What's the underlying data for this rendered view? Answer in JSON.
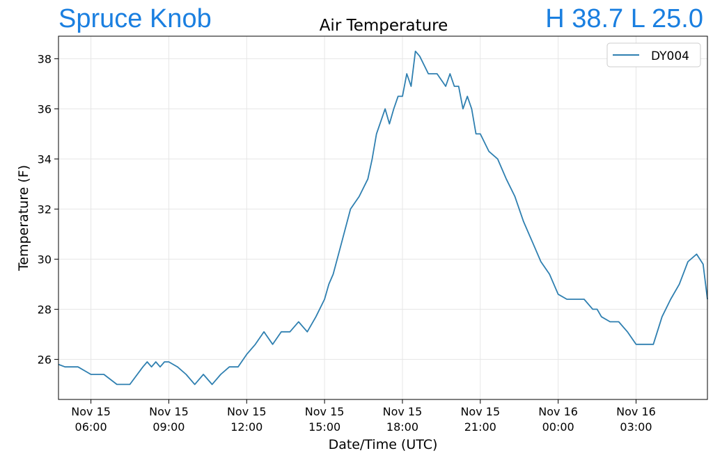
{
  "header": {
    "station": "Spruce Knob",
    "high_label": "H",
    "high_value": "38.7",
    "low_label": "L",
    "low_value": "25.0",
    "accent_color": "#1a7fe0"
  },
  "chart_data": {
    "type": "line",
    "title": "Air Temperature",
    "xlabel": "Date/Time (UTC)",
    "ylabel": "Temperature (F)",
    "x_range": [
      "2021-11-15T04:45",
      "2021-11-16T05:45"
    ],
    "ylim": [
      24.4,
      38.9
    ],
    "y_ticks": [
      26,
      28,
      30,
      32,
      34,
      36,
      38
    ],
    "x_ticks": [
      {
        "time": "2021-11-15T06:00",
        "line1": "Nov 15",
        "line2": "06:00"
      },
      {
        "time": "2021-11-15T09:00",
        "line1": "Nov 15",
        "line2": "09:00"
      },
      {
        "time": "2021-11-15T12:00",
        "line1": "Nov 15",
        "line2": "12:00"
      },
      {
        "time": "2021-11-15T15:00",
        "line1": "Nov 15",
        "line2": "15:00"
      },
      {
        "time": "2021-11-15T18:00",
        "line1": "Nov 15",
        "line2": "18:00"
      },
      {
        "time": "2021-11-15T21:00",
        "line1": "Nov 15",
        "line2": "21:00"
      },
      {
        "time": "2021-11-16T00:00",
        "line1": "Nov 16",
        "line2": "00:00"
      },
      {
        "time": "2021-11-16T03:00",
        "line1": "Nov 16",
        "line2": "03:00"
      }
    ],
    "grid": true,
    "legend_position": "top-right",
    "series": [
      {
        "name": "DY004",
        "color": "#2e7fb0",
        "x": [
          "2021-11-15T04:45",
          "2021-11-15T05:00",
          "2021-11-15T05:30",
          "2021-11-15T06:00",
          "2021-11-15T06:30",
          "2021-11-15T07:00",
          "2021-11-15T07:30",
          "2021-11-15T08:00",
          "2021-11-15T08:10",
          "2021-11-15T08:20",
          "2021-11-15T08:30",
          "2021-11-15T08:40",
          "2021-11-15T08:50",
          "2021-11-15T09:00",
          "2021-11-15T09:20",
          "2021-11-15T09:40",
          "2021-11-15T10:00",
          "2021-11-15T10:20",
          "2021-11-15T10:40",
          "2021-11-15T11:00",
          "2021-11-15T11:20",
          "2021-11-15T11:40",
          "2021-11-15T12:00",
          "2021-11-15T12:20",
          "2021-11-15T12:40",
          "2021-11-15T13:00",
          "2021-11-15T13:20",
          "2021-11-15T13:40",
          "2021-11-15T14:00",
          "2021-11-15T14:20",
          "2021-11-15T14:40",
          "2021-11-15T15:00",
          "2021-11-15T15:10",
          "2021-11-15T15:20",
          "2021-11-15T15:40",
          "2021-11-15T16:00",
          "2021-11-15T16:20",
          "2021-11-15T16:40",
          "2021-11-15T16:50",
          "2021-11-15T17:00",
          "2021-11-15T17:20",
          "2021-11-15T17:30",
          "2021-11-15T17:40",
          "2021-11-15T17:50",
          "2021-11-15T18:00",
          "2021-11-15T18:10",
          "2021-11-15T18:20",
          "2021-11-15T18:30",
          "2021-11-15T18:40",
          "2021-11-15T19:00",
          "2021-11-15T19:20",
          "2021-11-15T19:40",
          "2021-11-15T19:50",
          "2021-11-15T20:00",
          "2021-11-15T20:10",
          "2021-11-15T20:20",
          "2021-11-15T20:30",
          "2021-11-15T20:40",
          "2021-11-15T20:50",
          "2021-11-15T21:00",
          "2021-11-15T21:20",
          "2021-11-15T21:40",
          "2021-11-15T22:00",
          "2021-11-15T22:20",
          "2021-11-15T22:40",
          "2021-11-15T23:00",
          "2021-11-15T23:20",
          "2021-11-15T23:40",
          "2021-11-16T00:00",
          "2021-11-16T00:20",
          "2021-11-16T00:40",
          "2021-11-16T01:00",
          "2021-11-16T01:20",
          "2021-11-16T01:30",
          "2021-11-16T01:40",
          "2021-11-16T02:00",
          "2021-11-16T02:20",
          "2021-11-16T02:40",
          "2021-11-16T03:00",
          "2021-11-16T03:20",
          "2021-11-16T03:40",
          "2021-11-16T04:00",
          "2021-11-16T04:20",
          "2021-11-16T04:40",
          "2021-11-16T05:00",
          "2021-11-16T05:20",
          "2021-11-16T05:35",
          "2021-11-16T05:45"
        ],
        "y": [
          25.8,
          25.7,
          25.7,
          25.4,
          25.4,
          25.0,
          25.0,
          25.7,
          25.9,
          25.7,
          25.9,
          25.7,
          25.9,
          25.9,
          25.7,
          25.4,
          25.0,
          25.4,
          25.0,
          25.4,
          25.7,
          25.7,
          26.2,
          26.6,
          27.1,
          26.6,
          27.1,
          27.1,
          27.5,
          27.1,
          27.7,
          28.4,
          29.0,
          29.4,
          30.7,
          32.0,
          32.5,
          33.2,
          34.0,
          35.0,
          36.0,
          35.4,
          36.0,
          36.5,
          36.5,
          37.4,
          36.9,
          38.3,
          38.1,
          37.4,
          37.4,
          36.9,
          37.4,
          36.9,
          36.9,
          36.0,
          36.5,
          36.0,
          35.0,
          35.0,
          34.3,
          34.0,
          33.2,
          32.5,
          31.5,
          30.7,
          29.9,
          29.4,
          28.6,
          28.4,
          28.4,
          28.4,
          28.0,
          28.0,
          27.7,
          27.5,
          27.5,
          27.1,
          26.6,
          26.6,
          26.6,
          27.7,
          28.4,
          29.0,
          29.9,
          30.2,
          29.8,
          28.4
        ]
      }
    ]
  }
}
